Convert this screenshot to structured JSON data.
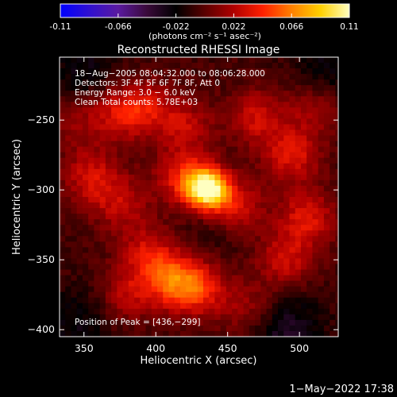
{
  "colorbar": {
    "ticks": [
      "-0.11",
      "-0.066",
      "-0.022",
      "0.022",
      "0.066",
      "0.11"
    ],
    "tick_values": [
      -0.11,
      -0.066,
      -0.022,
      0.022,
      0.066,
      0.11
    ],
    "range": [
      -0.11,
      0.11
    ],
    "units_label": "(photons cm⁻² s⁻¹ asec⁻²)",
    "colors": [
      "#0000ff",
      "#3010d0",
      "#5a1aa0",
      "#3a0a3a",
      "#000000",
      "#5a0000",
      "#b00000",
      "#ff2000",
      "#ff8000",
      "#ffd000",
      "#ffffc0"
    ]
  },
  "chart_data": {
    "type": "heatmap",
    "title": "Reconstructed RHESSI Image",
    "xlabel": "Heliocentric X (arcsec)",
    "ylabel": "Heliocentric Y (arcsec)",
    "xlim": [
      333,
      527
    ],
    "ylim": [
      -405,
      -205
    ],
    "xticks": [
      350,
      400,
      450,
      500
    ],
    "yticks": [
      -250,
      -300,
      -350,
      -400
    ],
    "xtick_labels": [
      "350",
      "400",
      "450",
      "500"
    ],
    "ytick_labels": [
      "−250",
      "−300",
      "−350",
      "−400"
    ],
    "annotations": [
      "18−Aug−2005 08:04:32.000 to 08:06:28.000",
      "Detectors: 3F 4F 5F 6F 7F 8F, Att 0",
      "Energy Range: 3.0 − 6.0 keV",
      "Clean    Total counts: 5.78E+03"
    ],
    "peak_label": "Position of Peak = [436,−299]",
    "peak": {
      "x": 436,
      "y": -299,
      "value": 0.11
    },
    "bright_regions": [
      {
        "x": 436,
        "y": -299,
        "value": 0.11
      },
      {
        "x": 420,
        "y": -292,
        "value": 0.045
      },
      {
        "x": 455,
        "y": -312,
        "value": 0.04
      },
      {
        "x": 375,
        "y": -245,
        "value": 0.035
      },
      {
        "x": 395,
        "y": -240,
        "value": 0.03
      },
      {
        "x": 420,
        "y": -255,
        "value": 0.03
      },
      {
        "x": 470,
        "y": -248,
        "value": 0.035
      },
      {
        "x": 495,
        "y": -275,
        "value": 0.04
      },
      {
        "x": 505,
        "y": -320,
        "value": 0.04
      },
      {
        "x": 490,
        "y": -350,
        "value": 0.035
      },
      {
        "x": 355,
        "y": -290,
        "value": 0.035
      },
      {
        "x": 375,
        "y": -310,
        "value": 0.03
      },
      {
        "x": 395,
        "y": -345,
        "value": 0.035
      },
      {
        "x": 412,
        "y": -365,
        "value": 0.05
      },
      {
        "x": 430,
        "y": -370,
        "value": 0.045
      },
      {
        "x": 380,
        "y": -375,
        "value": 0.03
      },
      {
        "x": 465,
        "y": -385,
        "value": 0.025
      },
      {
        "x": 345,
        "y": -250,
        "value": 0.02
      },
      {
        "x": 510,
        "y": -240,
        "value": 0.025
      }
    ],
    "dark_regions": [
      {
        "x": 490,
        "y": -400,
        "value": -0.03
      },
      {
        "x": 350,
        "y": -215,
        "value": -0.02
      },
      {
        "x": 345,
        "y": -395,
        "value": -0.02
      },
      {
        "x": 520,
        "y": -215,
        "value": -0.02
      },
      {
        "x": 440,
        "y": -330,
        "value": -0.01
      }
    ]
  },
  "footer": {
    "timestamp": "1−May−2022 17:38"
  }
}
